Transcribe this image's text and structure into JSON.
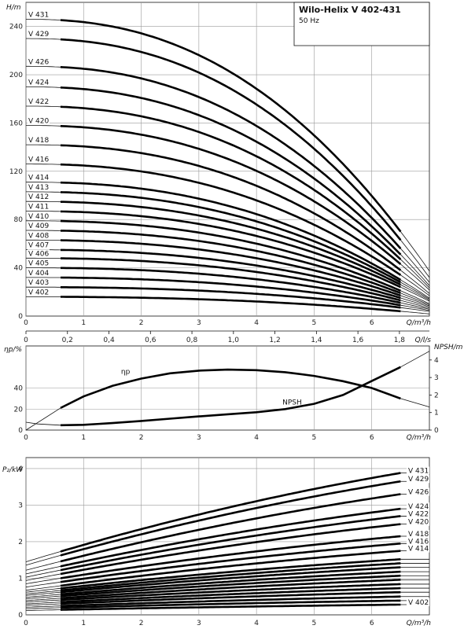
{
  "header": {
    "title": "Wilo-Helix V 402-431",
    "subtitle": "50 Hz"
  },
  "chart_data": [
    {
      "type": "line",
      "name": "head",
      "ylabel": "H/m",
      "xlabel": "Q/m³/h",
      "x2label": "Q/l/s",
      "xlim": [
        0,
        7
      ],
      "ylim": [
        0,
        260
      ],
      "x2lim": [
        0,
        1.9444
      ],
      "xticks": [
        0,
        1,
        2,
        3,
        4,
        5,
        6
      ],
      "yticks": [
        0,
        40,
        80,
        120,
        160,
        200,
        240
      ],
      "x2ticks": [
        "0",
        "0,2",
        "0,4",
        "0,6",
        "0,8",
        "1,0",
        "1,2",
        "1,4",
        "1,6",
        "1,8"
      ],
      "x2tick_values": [
        0,
        0.2,
        0.4,
        0.6,
        0.8,
        1.0,
        1.2,
        1.4,
        1.6,
        1.8
      ],
      "grid": true,
      "operating_range_q": [
        0.6,
        6.5
      ],
      "series": [
        {
          "name": "V 431",
          "h0": 246,
          "h_end": 70
        },
        {
          "name": "V 429",
          "h0": 230,
          "h_end": 63
        },
        {
          "name": "V 426",
          "h0": 207,
          "h_end": 56
        },
        {
          "name": "V 424",
          "h0": 190,
          "h_end": 51
        },
        {
          "name": "V 422",
          "h0": 174,
          "h_end": 47
        },
        {
          "name": "V 420",
          "h0": 158,
          "h_end": 43
        },
        {
          "name": "V 418",
          "h0": 142,
          "h_end": 38
        },
        {
          "name": "V 416",
          "h0": 126,
          "h_end": 34
        },
        {
          "name": "V 414",
          "h0": 111,
          "h_end": 30
        },
        {
          "name": "V 413",
          "h0": 103,
          "h_end": 28
        },
        {
          "name": "V 412",
          "h0": 95,
          "h_end": 26
        },
        {
          "name": "V 411",
          "h0": 87,
          "h_end": 24
        },
        {
          "name": "V 410",
          "h0": 79,
          "h_end": 21
        },
        {
          "name": "V 409",
          "h0": 71,
          "h_end": 19
        },
        {
          "name": "V 408",
          "h0": 63,
          "h_end": 17
        },
        {
          "name": "V 407",
          "h0": 55,
          "h_end": 15
        },
        {
          "name": "V 406",
          "h0": 48,
          "h_end": 13
        },
        {
          "name": "V 405",
          "h0": 40,
          "h_end": 11
        },
        {
          "name": "V 404",
          "h0": 32,
          "h_end": 9
        },
        {
          "name": "V 403",
          "h0": 24,
          "h_end": 7
        },
        {
          "name": "V 402",
          "h0": 16,
          "h_end": 4
        }
      ]
    },
    {
      "type": "line",
      "name": "efficiency-npsh",
      "ylabel": "ηp/%",
      "y2label": "NPSH/m",
      "xlabel": "Q/m³/h",
      "xlim": [
        0,
        7
      ],
      "ylim": [
        0,
        80
      ],
      "y2lim": [
        0,
        4.8
      ],
      "xticks": [
        0,
        1,
        2,
        3,
        4,
        5,
        6
      ],
      "yticks": [
        0,
        20,
        40
      ],
      "y2ticks": [
        0,
        1,
        2,
        3,
        4
      ],
      "grid": true,
      "operating_range_q": [
        0.6,
        6.5
      ],
      "series": [
        {
          "name": "ηp",
          "axis": "left",
          "x": [
            0,
            0.6,
            1,
            1.5,
            2,
            2.5,
            3,
            3.5,
            4,
            4.5,
            5,
            5.5,
            6,
            6.5,
            7
          ],
          "y": [
            0,
            21,
            32,
            42,
            49,
            54,
            56.5,
            57.5,
            57,
            55,
            51.5,
            46.5,
            40,
            30,
            22
          ]
        },
        {
          "name": "NPSH",
          "axis": "right",
          "x": [
            0,
            0.2,
            0.6,
            1,
            1.5,
            2,
            2.5,
            3,
            3.5,
            4,
            4.5,
            5,
            5.5,
            6,
            6.5,
            7
          ],
          "y": [
            0.45,
            0.35,
            0.28,
            0.3,
            0.4,
            0.52,
            0.65,
            0.78,
            0.9,
            1.02,
            1.2,
            1.5,
            2.0,
            2.8,
            3.6,
            4.5
          ]
        }
      ]
    },
    {
      "type": "line",
      "name": "power",
      "ylabel": "P₂/kW",
      "xlabel": "Q/m³/h",
      "xlim": [
        0,
        7
      ],
      "ylim": [
        0,
        4.3
      ],
      "xticks": [
        0,
        1,
        2,
        3,
        4,
        5,
        6
      ],
      "yticks": [
        0,
        1,
        2,
        3,
        4
      ],
      "grid": true,
      "operating_range_q": [
        0.6,
        6.5
      ],
      "series": [
        {
          "name": "V 431",
          "p0": 1.45,
          "p_end": 3.88
        },
        {
          "name": "V 429",
          "p0": 1.36,
          "p_end": 3.65
        },
        {
          "name": "V 426",
          "p0": 1.22,
          "p_end": 3.3
        },
        {
          "name": "V 424",
          "p0": 1.12,
          "p_end": 2.9
        },
        {
          "name": "V 422",
          "p0": 1.03,
          "p_end": 2.7
        },
        {
          "name": "V 420",
          "p0": 0.94,
          "p_end": 2.48
        },
        {
          "name": "V 418",
          "p0": 0.85,
          "p_end": 2.15
        },
        {
          "name": "V 416",
          "p0": 0.76,
          "p_end": 1.95
        },
        {
          "name": "V 414",
          "p0": 0.67,
          "p_end": 1.75
        },
        {
          "name": "V 413",
          "p0": 0.62,
          "p_end": 1.52
        },
        {
          "name": "V 412",
          "p0": 0.57,
          "p_end": 1.41
        },
        {
          "name": "V 411",
          "p0": 0.53,
          "p_end": 1.3
        },
        {
          "name": "V 410",
          "p0": 0.48,
          "p_end": 1.18
        },
        {
          "name": "V 409",
          "p0": 0.44,
          "p_end": 1.07
        },
        {
          "name": "V 408",
          "p0": 0.39,
          "p_end": 0.96
        },
        {
          "name": "V 407",
          "p0": 0.35,
          "p_end": 0.84
        },
        {
          "name": "V 406",
          "p0": 0.3,
          "p_end": 0.73
        },
        {
          "name": "V 405",
          "p0": 0.26,
          "p_end": 0.62
        },
        {
          "name": "V 404",
          "p0": 0.21,
          "p_end": 0.5
        },
        {
          "name": "V 403",
          "p0": 0.17,
          "p_end": 0.39
        },
        {
          "name": "V 402",
          "p0": 0.12,
          "p_end": 0.28
        }
      ],
      "labelled_series": [
        "V 431",
        "V 429",
        "V 426",
        "V 424",
        "V 422",
        "V 420",
        "V 418",
        "V 416",
        "V 414",
        "V 402"
      ]
    }
  ]
}
